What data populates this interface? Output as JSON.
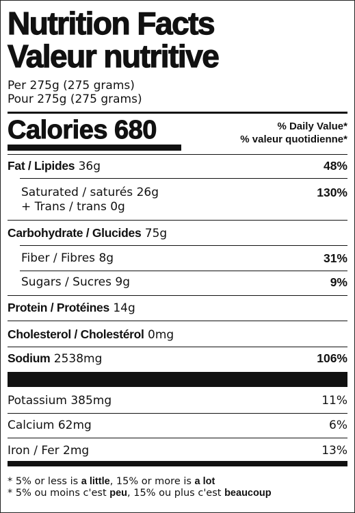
{
  "title": [
    "Nutrition Facts",
    "Valeur nutritive"
  ],
  "serving": [
    "Per 275g (275 grams)",
    "Pour 275g (275 grams)"
  ],
  "calories": {
    "label": "Calories",
    "value": "680"
  },
  "daily_value_header": [
    "% Daily Value*",
    "% valeur quotidienne*"
  ],
  "nutrients": [
    {
      "name": "Fat / Lipides",
      "amount": "36g",
      "dv": "48%"
    },
    {
      "name": "Saturated / saturés",
      "amount": "26g",
      "dv": "130%"
    },
    {
      "name": "+ Trans / trans",
      "amount": "0g"
    },
    {
      "name": "Carbohydrate / Glucides",
      "amount": "75g"
    },
    {
      "name": "Fiber / Fibres",
      "amount": "8g",
      "dv": "31%"
    },
    {
      "name": "Sugars / Sucres",
      "amount": "9g",
      "dv": "9%"
    },
    {
      "name": "Protein / Protéines",
      "amount": "14g"
    },
    {
      "name": "Cholesterol / Cholestérol",
      "amount": "0mg"
    },
    {
      "name": "Sodium",
      "amount": "2538mg",
      "dv": "106%"
    }
  ],
  "minerals": [
    {
      "name": "Potassium",
      "amount": "385mg",
      "dv": "11%"
    },
    {
      "name": "Calcium",
      "amount": "62mg",
      "dv": "6%"
    },
    {
      "name": "Iron / Fer",
      "amount": "2mg",
      "dv": "13%"
    }
  ],
  "footnote": [
    [
      "* 5% or less is ",
      "a little",
      ", 15% or more is ",
      "a lot"
    ],
    [
      "* 5% ou moins c'est ",
      "peu",
      ", 15% ou plus c'est ",
      "beaucoup"
    ]
  ]
}
